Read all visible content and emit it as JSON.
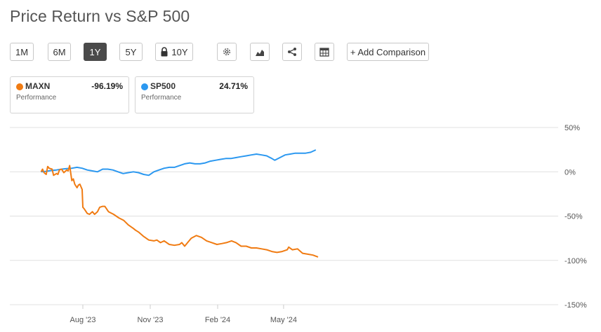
{
  "title": "Price Return vs S&P 500",
  "toolbar": {
    "ranges": [
      "1M",
      "6M",
      "1Y",
      "5Y",
      "10Y"
    ],
    "active_range": "1Y",
    "add_comparison": "+ Add Comparison",
    "tools": [
      "gear-icon",
      "mountain-chart-icon",
      "share-icon",
      "table-icon"
    ]
  },
  "legend": [
    {
      "symbol": "MAXN",
      "value": "-96.19%",
      "subtitle": "Performance",
      "color": "#f07b12"
    },
    {
      "symbol": "SP500",
      "value": "24.71%",
      "subtitle": "Performance",
      "color": "#2b98f0"
    }
  ],
  "chart_data": {
    "type": "line",
    "x_labels": [
      "Aug '23",
      "Nov '23",
      "Feb '24",
      "May '24"
    ],
    "y_ticks": [
      "50%",
      "0%",
      "-50%",
      "-100%",
      "-150%"
    ],
    "ylim": [
      -150,
      50
    ],
    "grid": true,
    "series": [
      {
        "name": "MAXN",
        "color": "#f07b12",
        "points": [
          [
            "2023-06-05",
            0
          ],
          [
            "2023-06-07",
            3
          ],
          [
            "2023-06-09",
            -1
          ],
          [
            "2023-06-12",
            -3
          ],
          [
            "2023-06-14",
            6
          ],
          [
            "2023-06-16",
            4
          ],
          [
            "2023-06-20",
            3
          ],
          [
            "2023-06-22",
            -4
          ],
          [
            "2023-06-26",
            -2
          ],
          [
            "2023-06-28",
            -3
          ],
          [
            "2023-06-30",
            2
          ],
          [
            "2023-07-03",
            3
          ],
          [
            "2023-07-06",
            -1
          ],
          [
            "2023-07-10",
            2
          ],
          [
            "2023-07-12",
            1
          ],
          [
            "2023-07-14",
            7
          ],
          [
            "2023-07-17",
            -10
          ],
          [
            "2023-07-19",
            -8
          ],
          [
            "2023-07-21",
            -14
          ],
          [
            "2023-07-24",
            -18
          ],
          [
            "2023-07-26",
            -15
          ],
          [
            "2023-07-28",
            -14
          ],
          [
            "2023-07-31",
            -20
          ],
          [
            "2023-08-01",
            -40
          ],
          [
            "2023-08-03",
            -42
          ],
          [
            "2023-08-07",
            -47
          ],
          [
            "2023-08-10",
            -48
          ],
          [
            "2023-08-14",
            -45
          ],
          [
            "2023-08-17",
            -48
          ],
          [
            "2023-08-21",
            -45
          ],
          [
            "2023-08-24",
            -40
          ],
          [
            "2023-08-28",
            -39
          ],
          [
            "2023-08-31",
            -39
          ],
          [
            "2023-09-05",
            -45
          ],
          [
            "2023-09-12",
            -48
          ],
          [
            "2023-09-19",
            -52
          ],
          [
            "2023-09-26",
            -55
          ],
          [
            "2023-10-02",
            -60
          ],
          [
            "2023-10-09",
            -64
          ],
          [
            "2023-10-12",
            -66
          ],
          [
            "2023-10-16",
            -68
          ],
          [
            "2023-10-23",
            -73
          ],
          [
            "2023-10-30",
            -77
          ],
          [
            "2023-11-06",
            -78
          ],
          [
            "2023-11-10",
            -77
          ],
          [
            "2023-11-15",
            -80
          ],
          [
            "2023-11-20",
            -78
          ],
          [
            "2023-11-27",
            -82
          ],
          [
            "2023-12-04",
            -83
          ],
          [
            "2023-12-11",
            -82
          ],
          [
            "2023-12-14",
            -80
          ],
          [
            "2023-12-18",
            -84
          ],
          [
            "2023-12-22",
            -80
          ],
          [
            "2023-12-27",
            -75
          ],
          [
            "2024-01-03",
            -72
          ],
          [
            "2024-01-10",
            -74
          ],
          [
            "2024-01-17",
            -78
          ],
          [
            "2024-01-24",
            -80
          ],
          [
            "2024-01-31",
            -82
          ],
          [
            "2024-02-07",
            -81
          ],
          [
            "2024-02-13",
            -80
          ],
          [
            "2024-02-20",
            -78
          ],
          [
            "2024-02-26",
            -80
          ],
          [
            "2024-03-04",
            -84
          ],
          [
            "2024-03-11",
            -84
          ],
          [
            "2024-03-18",
            -86
          ],
          [
            "2024-03-25",
            -86
          ],
          [
            "2024-04-01",
            -87
          ],
          [
            "2024-04-08",
            -88
          ],
          [
            "2024-04-15",
            -90
          ],
          [
            "2024-04-22",
            -91
          ],
          [
            "2024-04-29",
            -90
          ],
          [
            "2024-05-06",
            -88
          ],
          [
            "2024-05-08",
            -85
          ],
          [
            "2024-05-13",
            -88
          ],
          [
            "2024-05-20",
            -87
          ],
          [
            "2024-05-27",
            -92
          ],
          [
            "2024-06-03",
            -93
          ],
          [
            "2024-06-10",
            -94
          ],
          [
            "2024-06-17",
            -96.19
          ]
        ]
      },
      {
        "name": "SP500",
        "color": "#2b98f0",
        "points": [
          [
            "2023-06-05",
            0
          ],
          [
            "2023-06-12",
            0.5
          ],
          [
            "2023-06-19",
            1.5
          ],
          [
            "2023-06-26",
            2
          ],
          [
            "2023-07-03",
            3
          ],
          [
            "2023-07-10",
            3.5
          ],
          [
            "2023-07-17",
            4
          ],
          [
            "2023-07-24",
            5
          ],
          [
            "2023-07-31",
            4
          ],
          [
            "2023-08-07",
            2
          ],
          [
            "2023-08-14",
            1
          ],
          [
            "2023-08-21",
            0
          ],
          [
            "2023-08-28",
            3
          ],
          [
            "2023-09-04",
            3
          ],
          [
            "2023-09-11",
            2
          ],
          [
            "2023-09-18",
            0
          ],
          [
            "2023-09-25",
            -2
          ],
          [
            "2023-10-02",
            -1
          ],
          [
            "2023-10-09",
            0
          ],
          [
            "2023-10-16",
            -1
          ],
          [
            "2023-10-23",
            -3
          ],
          [
            "2023-10-30",
            -4
          ],
          [
            "2023-11-06",
            0
          ],
          [
            "2023-11-13",
            2
          ],
          [
            "2023-11-20",
            4
          ],
          [
            "2023-11-27",
            5
          ],
          [
            "2023-12-04",
            5
          ],
          [
            "2023-12-11",
            7
          ],
          [
            "2023-12-18",
            9
          ],
          [
            "2023-12-25",
            10
          ],
          [
            "2024-01-01",
            9
          ],
          [
            "2024-01-08",
            9
          ],
          [
            "2024-01-15",
            10
          ],
          [
            "2024-01-22",
            12
          ],
          [
            "2024-01-29",
            13
          ],
          [
            "2024-02-05",
            14
          ],
          [
            "2024-02-12",
            15
          ],
          [
            "2024-02-19",
            15
          ],
          [
            "2024-02-26",
            16
          ],
          [
            "2024-03-04",
            17
          ],
          [
            "2024-03-11",
            18
          ],
          [
            "2024-03-18",
            19
          ],
          [
            "2024-03-25",
            20
          ],
          [
            "2024-04-01",
            19
          ],
          [
            "2024-04-08",
            18
          ],
          [
            "2024-04-15",
            15
          ],
          [
            "2024-04-19",
            13
          ],
          [
            "2024-04-26",
            16
          ],
          [
            "2024-05-03",
            19
          ],
          [
            "2024-05-10",
            20
          ],
          [
            "2024-05-17",
            21
          ],
          [
            "2024-05-24",
            21
          ],
          [
            "2024-05-31",
            21
          ],
          [
            "2024-06-07",
            22
          ],
          [
            "2024-06-14",
            24.71
          ]
        ]
      }
    ]
  }
}
